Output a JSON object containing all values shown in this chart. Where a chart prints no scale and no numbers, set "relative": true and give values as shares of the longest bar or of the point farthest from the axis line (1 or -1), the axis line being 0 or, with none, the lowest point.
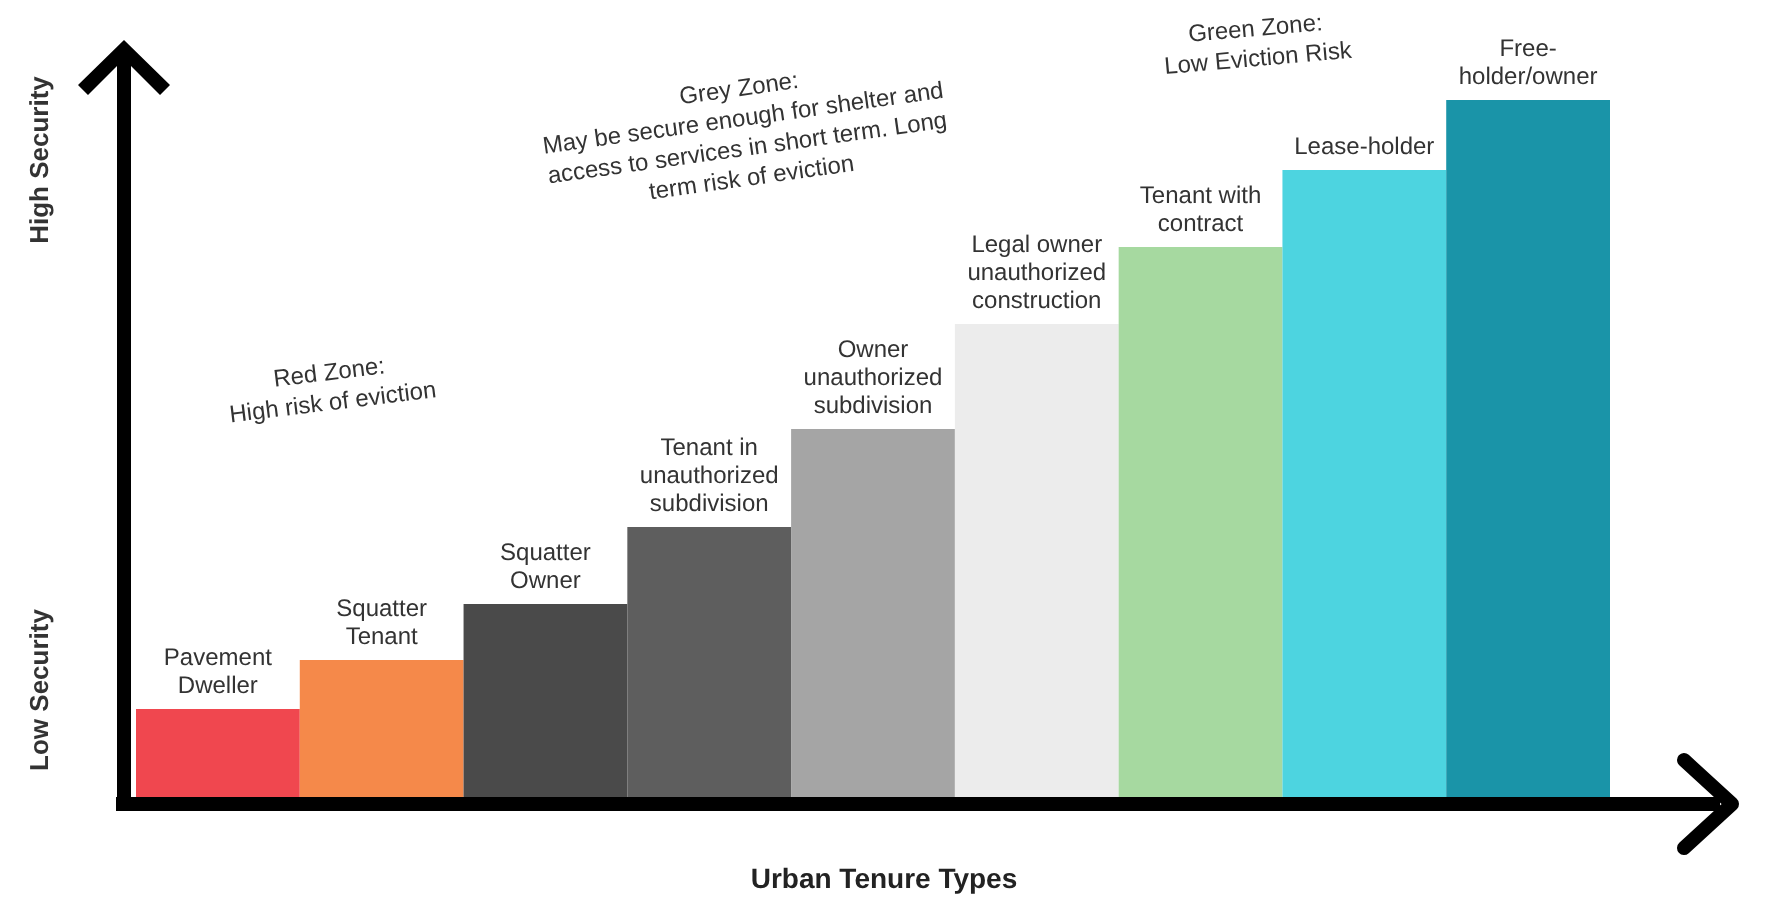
{
  "chart_data": {
    "type": "bar",
    "relative": true,
    "xlabel": "Urban Tenure Types",
    "categories": [
      "Pavement Dweller",
      "Squatter Tenant",
      "Squatter Owner",
      "Tenant in unauthorized subdivision",
      "Owner unauthorized subdivision",
      "Legal owner unauthorized construction",
      "Tenant with contract",
      "Lease-holder",
      "Free-holder/owner"
    ],
    "values": [
      0.13,
      0.2,
      0.28,
      0.39,
      0.53,
      0.68,
      0.79,
      0.9,
      1
    ],
    "colors": [
      "#f0474f",
      "#f5894a",
      "#4a4a4a",
      "#5e5e5e",
      "#a5a5a5",
      "#ececec",
      "#a6d9a0",
      "#4dd4e0",
      "#1a94a8"
    ],
    "annotations": [
      "High Security",
      "Low Security",
      "Red Zone:\nHigh risk of eviction",
      "Grey Zone:\nMay be secure enough for shelter and\naccess to services in short term. Long\nterm risk of eviction",
      "Green Zone:\nLow Eviction Risk"
    ],
    "grid": false
  }
}
